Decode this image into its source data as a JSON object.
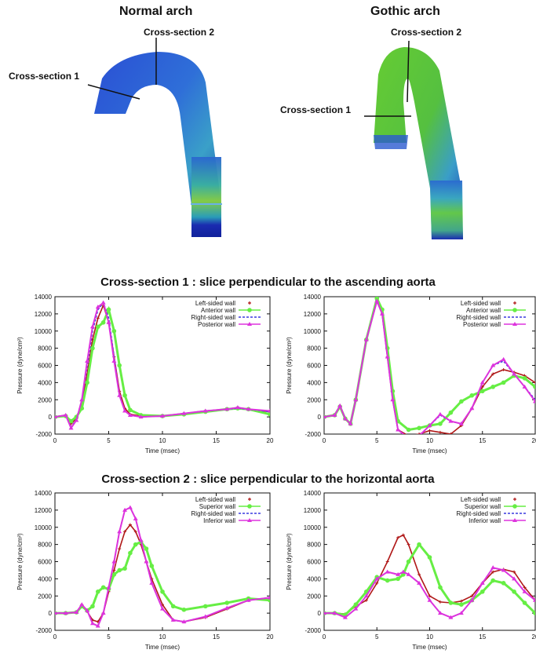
{
  "header": {
    "normal_title": "Normal arch",
    "gothic_title": "Gothic arch",
    "normal_cs1": "Cross-section 1",
    "normal_cs2": "Cross-section 2",
    "gothic_cs1": "Cross-section 1",
    "gothic_cs2": "Cross-section 2"
  },
  "sections": {
    "cs1_title": "Cross-section 1 : slice perpendicular to the ascending aorta",
    "cs2_title": "Cross-section 2 : slice perpendicular to the horizontal aorta"
  },
  "colors": {
    "left": "#b01818",
    "anterior": "#66ee44",
    "right": "#3a3adf",
    "posterior": "#dd33dd"
  },
  "chart_data": [
    {
      "type": "line",
      "xlabel": "Time (msec)",
      "ylabel": "Pressure (dyne/cm²)",
      "xlim": [
        0,
        20
      ],
      "ylim": [
        -2000,
        14000
      ],
      "xticks": [
        0,
        5,
        10,
        15,
        20
      ],
      "yticks": [
        -2000,
        0,
        2000,
        4000,
        6000,
        8000,
        10000,
        12000,
        14000
      ],
      "legend": "top-right",
      "series": [
        {
          "name": "Left-sided wall",
          "marker": "plus",
          "x": [
            0,
            1,
            1.5,
            2,
            2.5,
            3,
            3.5,
            4,
            4.5,
            5,
            5.5,
            6,
            6.5,
            7,
            8,
            10,
            12,
            14,
            16,
            17,
            18,
            20
          ],
          "y": [
            0,
            200,
            -800,
            -200,
            1500,
            5000,
            9000,
            11500,
            13000,
            11000,
            7000,
            3000,
            1000,
            300,
            100,
            100,
            400,
            700,
            900,
            1000,
            900,
            600
          ]
        },
        {
          "name": "Anterior wall",
          "marker": "circle",
          "x": [
            0,
            1,
            1.5,
            2,
            2.5,
            3,
            3.5,
            4,
            4.5,
            5,
            5.5,
            6,
            6.5,
            7,
            8,
            10,
            12,
            14,
            16,
            17,
            18,
            20
          ],
          "y": [
            0,
            100,
            -500,
            0,
            1000,
            4000,
            8000,
            10500,
            11000,
            12500,
            10000,
            6000,
            2500,
            800,
            200,
            100,
            300,
            600,
            900,
            1000,
            900,
            300
          ]
        },
        {
          "name": "Right-sided wall",
          "marker": "dash",
          "x": [
            0,
            1,
            1.5,
            2,
            2.5,
            3,
            3.5,
            4,
            4.5,
            5,
            5.5,
            6,
            6.5,
            7,
            8,
            10,
            12,
            14,
            16,
            17,
            18,
            20
          ],
          "y": [
            0,
            200,
            -1200,
            -300,
            2000,
            6000,
            10000,
            12500,
            13300,
            11500,
            7000,
            2500,
            700,
            200,
            0,
            100,
            400,
            700,
            900,
            1000,
            900,
            600
          ]
        },
        {
          "name": "Posterior wall",
          "marker": "triangle",
          "x": [
            0,
            1,
            1.5,
            2,
            2.5,
            3,
            3.5,
            4,
            4.5,
            5,
            5.5,
            6,
            6.5,
            7,
            8,
            10,
            12,
            14,
            16,
            17,
            18,
            20
          ],
          "y": [
            0,
            200,
            -1300,
            -400,
            2000,
            6500,
            10500,
            12800,
            13300,
            11000,
            6500,
            2500,
            700,
            200,
            0,
            100,
            400,
            700,
            900,
            1100,
            900,
            700
          ]
        }
      ]
    },
    {
      "type": "line",
      "xlabel": "Time (msec)",
      "ylabel": "Pressure (dyne/cm²)",
      "xlim": [
        0,
        20
      ],
      "ylim": [
        -2000,
        14000
      ],
      "xticks": [
        0,
        5,
        10,
        15,
        20
      ],
      "yticks": [
        -2000,
        0,
        2000,
        4000,
        6000,
        8000,
        10000,
        12000,
        14000
      ],
      "legend": "top-right",
      "series": [
        {
          "name": "Left-sided wall",
          "marker": "plus",
          "x": [
            0,
            1,
            1.5,
            2,
            2.5,
            3,
            4,
            5,
            5.5,
            6,
            6.5,
            7,
            8,
            9,
            10,
            11,
            12,
            13,
            14,
            15,
            16,
            17,
            18,
            19,
            20
          ],
          "y": [
            0,
            200,
            1200,
            -200,
            -800,
            2000,
            9000,
            13500,
            12000,
            7000,
            2000,
            -1500,
            -2200,
            -2000,
            -1600,
            -1800,
            -2000,
            -1000,
            1000,
            3500,
            5000,
            5500,
            5200,
            4800,
            4000
          ]
        },
        {
          "name": "Anterior wall",
          "marker": "circle",
          "x": [
            0,
            1,
            1.5,
            2,
            2.5,
            3,
            4,
            5,
            5.5,
            6,
            6.5,
            7,
            8,
            9,
            10,
            11,
            12,
            13,
            14,
            15,
            16,
            17,
            18,
            19,
            20
          ],
          "y": [
            0,
            200,
            1200,
            -200,
            -800,
            2000,
            9000,
            13800,
            12500,
            8000,
            3000,
            -500,
            -1500,
            -1300,
            -1000,
            -800,
            500,
            1800,
            2500,
            3000,
            3500,
            4000,
            4800,
            4500,
            3500
          ]
        },
        {
          "name": "Right-sided wall",
          "marker": "dash",
          "x": [
            0,
            1,
            1.5,
            2,
            2.5,
            3,
            4,
            5,
            5.5,
            6,
            6.5,
            7,
            8,
            9,
            10,
            11,
            12,
            13,
            14,
            15,
            16,
            17,
            18,
            19,
            20
          ],
          "y": [
            0,
            200,
            1300,
            -200,
            -800,
            2000,
            9000,
            13500,
            12000,
            7000,
            2000,
            -1500,
            -2500,
            -2200,
            -1000,
            200,
            -500,
            -800,
            1000,
            4000,
            6000,
            6500,
            5000,
            3500,
            2000
          ]
        },
        {
          "name": "Posterior wall",
          "marker": "triangle",
          "x": [
            0,
            1,
            1.5,
            2,
            2.5,
            3,
            4,
            5,
            5.5,
            6,
            6.5,
            7,
            8,
            9,
            10,
            11,
            12,
            13,
            14,
            15,
            16,
            17,
            18,
            19,
            20
          ],
          "y": [
            0,
            200,
            1300,
            -200,
            -800,
            2000,
            9000,
            13500,
            12000,
            7000,
            2000,
            -1500,
            -2500,
            -2200,
            -1000,
            300,
            -500,
            -800,
            1000,
            4000,
            6000,
            6700,
            5000,
            3500,
            1800
          ]
        }
      ]
    },
    {
      "type": "line",
      "xlabel": "Time (msec)",
      "ylabel": "Pressure (dyne/cm²)",
      "xlim": [
        0,
        20
      ],
      "ylim": [
        -2000,
        14000
      ],
      "xticks": [
        0,
        5,
        10,
        15,
        20
      ],
      "yticks": [
        -2000,
        0,
        2000,
        4000,
        6000,
        8000,
        10000,
        12000,
        14000
      ],
      "legend": "top-right",
      "series": [
        {
          "name": "Left-sided wall",
          "marker": "plus",
          "x": [
            0,
            1,
            2,
            2.5,
            3,
            3.5,
            4,
            4.5,
            5,
            5.5,
            6,
            6.5,
            7,
            7.5,
            8,
            8.5,
            9,
            10,
            11,
            12,
            14,
            16,
            18,
            20
          ],
          "y": [
            0,
            0,
            100,
            1000,
            200,
            -800,
            -1000,
            0,
            2500,
            5000,
            7500,
            9500,
            10300,
            9500,
            8000,
            6000,
            4000,
            1000,
            -800,
            -1000,
            -500,
            500,
            1500,
            1800
          ]
        },
        {
          "name": "Superior wall",
          "marker": "circle",
          "x": [
            0,
            1,
            2,
            2.5,
            3,
            3.5,
            4,
            4.5,
            5,
            5.5,
            6,
            6.5,
            7,
            7.5,
            8,
            8.5,
            9,
            10,
            11,
            12,
            14,
            16,
            18,
            20
          ],
          "y": [
            0,
            0,
            100,
            800,
            300,
            800,
            2500,
            3000,
            2800,
            4500,
            5000,
            5200,
            7000,
            8000,
            8300,
            7500,
            5500,
            2500,
            800,
            400,
            800,
            1200,
            1700,
            1500
          ]
        },
        {
          "name": "Right-sided wall",
          "marker": "dash",
          "x": [
            0,
            1,
            2,
            2.5,
            3,
            3.5,
            4,
            4.5,
            5,
            5.5,
            6,
            6.5,
            7,
            7.5,
            8,
            8.5,
            9,
            10,
            11,
            12,
            14,
            16,
            18,
            20
          ],
          "y": [
            0,
            0,
            100,
            1000,
            300,
            -1200,
            -1500,
            0,
            3000,
            6000,
            9500,
            12000,
            12300,
            11000,
            8500,
            6000,
            3500,
            500,
            -800,
            -1000,
            -400,
            600,
            1500,
            1800
          ]
        },
        {
          "name": "Inferior wall",
          "marker": "triangle",
          "x": [
            0,
            1,
            2,
            2.5,
            3,
            3.5,
            4,
            4.5,
            5,
            5.5,
            6,
            6.5,
            7,
            7.5,
            8,
            8.5,
            9,
            10,
            11,
            12,
            14,
            16,
            18,
            20
          ],
          "y": [
            0,
            0,
            100,
            1000,
            300,
            -1200,
            -1500,
            0,
            3000,
            6000,
            9500,
            12000,
            12300,
            11000,
            8500,
            6000,
            3500,
            500,
            -800,
            -1000,
            -400,
            600,
            1500,
            1800
          ]
        }
      ]
    },
    {
      "type": "line",
      "xlabel": "Time (msec)",
      "ylabel": "Pressure (dyne/cm²)",
      "xlim": [
        0,
        20
      ],
      "ylim": [
        -2000,
        14000
      ],
      "xticks": [
        0,
        5,
        10,
        15,
        20
      ],
      "yticks": [
        -2000,
        0,
        2000,
        4000,
        6000,
        8000,
        10000,
        12000,
        14000
      ],
      "legend": "top-right",
      "series": [
        {
          "name": "Left-sided wall",
          "marker": "plus",
          "x": [
            0,
            1,
            2,
            3,
            4,
            5,
            6,
            7,
            7.5,
            8,
            9,
            10,
            11,
            12,
            13,
            14,
            15,
            16,
            17,
            18,
            19,
            20
          ],
          "y": [
            0,
            0,
            -100,
            800,
            1500,
            3500,
            6000,
            8800,
            9100,
            8000,
            4500,
            2000,
            1300,
            1200,
            1400,
            2000,
            3500,
            4800,
            5100,
            4800,
            3000,
            1500
          ]
        },
        {
          "name": "Superior wall",
          "marker": "circle",
          "x": [
            0,
            1,
            2,
            3,
            4,
            5,
            6,
            7,
            7.5,
            8,
            9,
            10,
            11,
            12,
            13,
            14,
            15,
            16,
            17,
            18,
            19,
            20
          ],
          "y": [
            0,
            0,
            -200,
            1000,
            2500,
            4200,
            3800,
            4000,
            4500,
            6000,
            8000,
            6500,
            3000,
            1200,
            1000,
            1500,
            2500,
            3800,
            3500,
            2500,
            1200,
            0
          ]
        },
        {
          "name": "Right-sided wall",
          "marker": "dash",
          "x": [
            0,
            1,
            2,
            3,
            4,
            5,
            6,
            7,
            7.5,
            8,
            9,
            10,
            11,
            12,
            13,
            14,
            15,
            16,
            17,
            18,
            19,
            20
          ],
          "y": [
            0,
            0,
            -500,
            500,
            2000,
            4000,
            4800,
            4500,
            4800,
            4500,
            3500,
            1500,
            0,
            -500,
            0,
            1500,
            3500,
            5300,
            5000,
            4000,
            2500,
            1500
          ]
        },
        {
          "name": "Inferior wall",
          "marker": "triangle",
          "x": [
            0,
            1,
            2,
            3,
            4,
            5,
            6,
            7,
            7.5,
            8,
            9,
            10,
            11,
            12,
            13,
            14,
            15,
            16,
            17,
            18,
            19,
            20
          ],
          "y": [
            0,
            0,
            -500,
            500,
            2000,
            4000,
            4800,
            4500,
            4800,
            4500,
            3500,
            1500,
            0,
            -500,
            0,
            1500,
            3500,
            5300,
            5000,
            4000,
            2500,
            1500
          ]
        }
      ]
    }
  ]
}
